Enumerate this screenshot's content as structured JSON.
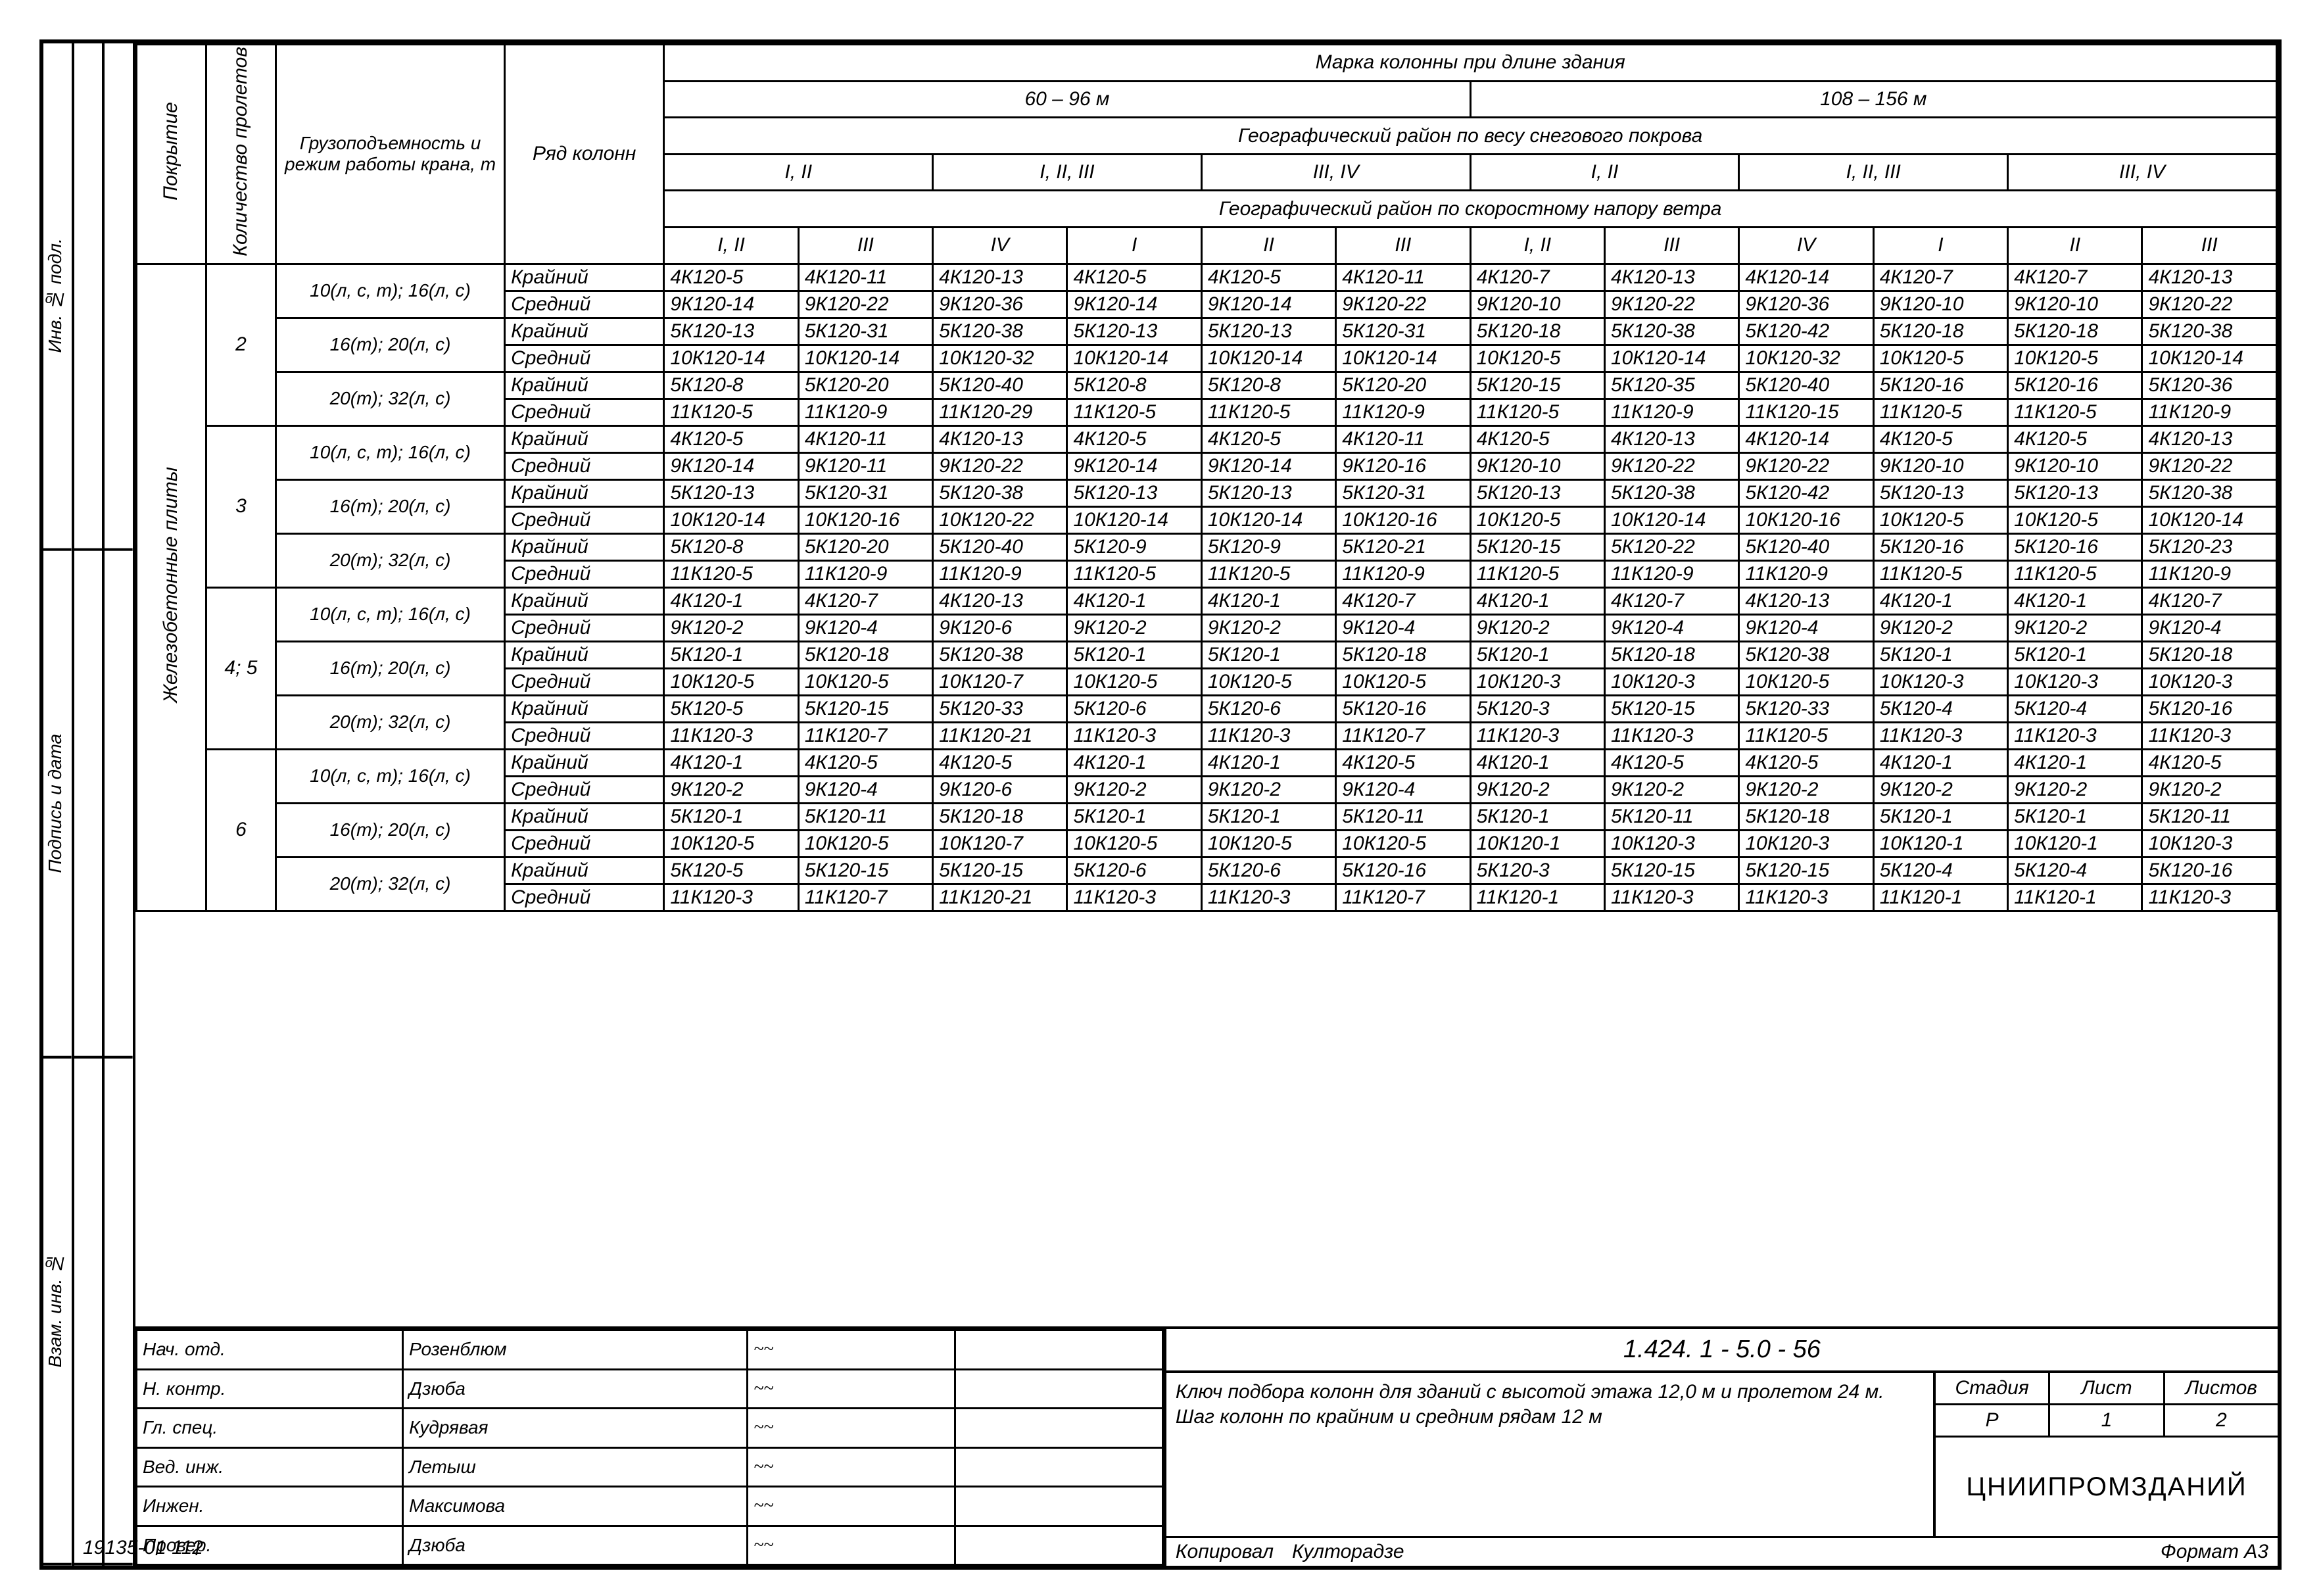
{
  "left_strip": {
    "col1": [
      "Инв. № подл.",
      "Подпись и дата",
      "Взам. инв. №"
    ],
    "col2": [
      "",
      "",
      ""
    ],
    "col3": [
      "",
      "",
      ""
    ]
  },
  "header": {
    "v1": "Покрытие",
    "v2": "Количество пролетов",
    "cap": "Грузоподъемность и режим работы крана, т",
    "row": "Ряд колонн",
    "top": "Марка   колонны   при   длине   здания",
    "span1": "60 – 96 м",
    "span2": "108 – 156 м",
    "geo_snow": "Географический   район   по   весу   снегового   покрова",
    "snow_groups": [
      "I, II",
      "I, II, III",
      "III, IV",
      "I, II",
      "I, II, III",
      "III, IV"
    ],
    "geo_wind": "Географический   район   по   скоростному   напору   ветра",
    "wind_groups": [
      "I, II",
      "III",
      "IV",
      "I",
      "II",
      "III",
      "I, II",
      "III",
      "IV",
      "I",
      "II",
      "III"
    ]
  },
  "side": {
    "covering": "Железобетонные   плиты"
  },
  "groups": [
    {
      "prolet": "2",
      "caps": [
        {
          "cap": "10(л, с, т); 16(л, с)",
          "rows": [
            {
              "row": "Крайний",
              "d": [
                "4К120-5",
                "4К120-11",
                "4К120-13",
                "4К120-5",
                "4К120-5",
                "4К120-11",
                "4К120-7",
                "4К120-13",
                "4К120-14",
                "4К120-7",
                "4К120-7",
                "4К120-13"
              ]
            },
            {
              "row": "Средний",
              "d": [
                "9К120-14",
                "9К120-22",
                "9К120-36",
                "9К120-14",
                "9К120-14",
                "9К120-22",
                "9К120-10",
                "9К120-22",
                "9К120-36",
                "9К120-10",
                "9К120-10",
                "9К120-22"
              ]
            }
          ]
        },
        {
          "cap": "16(т); 20(л, с)",
          "rows": [
            {
              "row": "Крайний",
              "d": [
                "5К120-13",
                "5К120-31",
                "5К120-38",
                "5К120-13",
                "5К120-13",
                "5К120-31",
                "5К120-18",
                "5К120-38",
                "5К120-42",
                "5К120-18",
                "5К120-18",
                "5К120-38"
              ]
            },
            {
              "row": "Средний",
              "d": [
                "10К120-14",
                "10К120-14",
                "10К120-32",
                "10К120-14",
                "10К120-14",
                "10К120-14",
                "10К120-5",
                "10К120-14",
                "10К120-32",
                "10К120-5",
                "10К120-5",
                "10К120-14"
              ]
            }
          ]
        },
        {
          "cap": "20(т); 32(л, с)",
          "rows": [
            {
              "row": "Крайний",
              "d": [
                "5К120-8",
                "5К120-20",
                "5К120-40",
                "5К120-8",
                "5К120-8",
                "5К120-20",
                "5К120-15",
                "5К120-35",
                "5К120-40",
                "5К120-16",
                "5К120-16",
                "5К120-36"
              ]
            },
            {
              "row": "Средний",
              "d": [
                "11К120-5",
                "11К120-9",
                "11К120-29",
                "11К120-5",
                "11К120-5",
                "11К120-9",
                "11К120-5",
                "11К120-9",
                "11К120-15",
                "11К120-5",
                "11К120-5",
                "11К120-9"
              ]
            }
          ]
        }
      ]
    },
    {
      "prolet": "3",
      "caps": [
        {
          "cap": "10(л, с, т); 16(л, с)",
          "rows": [
            {
              "row": "Крайний",
              "d": [
                "4К120-5",
                "4К120-11",
                "4К120-13",
                "4К120-5",
                "4К120-5",
                "4К120-11",
                "4К120-5",
                "4К120-13",
                "4К120-14",
                "4К120-5",
                "4К120-5",
                "4К120-13"
              ]
            },
            {
              "row": "Средний",
              "d": [
                "9К120-14",
                "9К120-11",
                "9К120-22",
                "9К120-14",
                "9К120-14",
                "9К120-16",
                "9К120-10",
                "9К120-22",
                "9К120-22",
                "9К120-10",
                "9К120-10",
                "9К120-22"
              ]
            }
          ]
        },
        {
          "cap": "16(т); 20(л, с)",
          "rows": [
            {
              "row": "Крайний",
              "d": [
                "5К120-13",
                "5К120-31",
                "5К120-38",
                "5К120-13",
                "5К120-13",
                "5К120-31",
                "5К120-13",
                "5К120-38",
                "5К120-42",
                "5К120-13",
                "5К120-13",
                "5К120-38"
              ]
            },
            {
              "row": "Средний",
              "d": [
                "10К120-14",
                "10К120-16",
                "10К120-22",
                "10К120-14",
                "10К120-14",
                "10К120-16",
                "10К120-5",
                "10К120-14",
                "10К120-16",
                "10К120-5",
                "10К120-5",
                "10К120-14"
              ]
            }
          ]
        },
        {
          "cap": "20(т); 32(л, с)",
          "rows": [
            {
              "row": "Крайний",
              "d": [
                "5К120-8",
                "5К120-20",
                "5К120-40",
                "5К120-9",
                "5К120-9",
                "5К120-21",
                "5К120-15",
                "5К120-22",
                "5К120-40",
                "5К120-16",
                "5К120-16",
                "5К120-23"
              ]
            },
            {
              "row": "Средний",
              "d": [
                "11К120-5",
                "11К120-9",
                "11К120-9",
                "11К120-5",
                "11К120-5",
                "11К120-9",
                "11К120-5",
                "11К120-9",
                "11К120-9",
                "11К120-5",
                "11К120-5",
                "11К120-9"
              ]
            }
          ]
        }
      ]
    },
    {
      "prolet": "4; 5",
      "caps": [
        {
          "cap": "10(л, с, т); 16(л, с)",
          "rows": [
            {
              "row": "Крайний",
              "d": [
                "4К120-1",
                "4К120-7",
                "4К120-13",
                "4К120-1",
                "4К120-1",
                "4К120-7",
                "4К120-1",
                "4К120-7",
                "4К120-13",
                "4К120-1",
                "4К120-1",
                "4К120-7"
              ]
            },
            {
              "row": "Средний",
              "d": [
                "9К120-2",
                "9К120-4",
                "9К120-6",
                "9К120-2",
                "9К120-2",
                "9К120-4",
                "9К120-2",
                "9К120-4",
                "9К120-4",
                "9К120-2",
                "9К120-2",
                "9К120-4"
              ]
            }
          ]
        },
        {
          "cap": "16(т); 20(л, с)",
          "rows": [
            {
              "row": "Крайний",
              "d": [
                "5К120-1",
                "5К120-18",
                "5К120-38",
                "5К120-1",
                "5К120-1",
                "5К120-18",
                "5К120-1",
                "5К120-18",
                "5К120-38",
                "5К120-1",
                "5К120-1",
                "5К120-18"
              ]
            },
            {
              "row": "Средний",
              "d": [
                "10К120-5",
                "10К120-5",
                "10К120-7",
                "10К120-5",
                "10К120-5",
                "10К120-5",
                "10К120-3",
                "10К120-3",
                "10К120-5",
                "10К120-3",
                "10К120-3",
                "10К120-3"
              ]
            }
          ]
        },
        {
          "cap": "20(т); 32(л, с)",
          "rows": [
            {
              "row": "Крайний",
              "d": [
                "5К120-5",
                "5К120-15",
                "5К120-33",
                "5К120-6",
                "5К120-6",
                "5К120-16",
                "5К120-3",
                "5К120-15",
                "5К120-33",
                "5К120-4",
                "5К120-4",
                "5К120-16"
              ]
            },
            {
              "row": "Средний",
              "d": [
                "11К120-3",
                "11К120-7",
                "11К120-21",
                "11К120-3",
                "11К120-3",
                "11К120-7",
                "11К120-3",
                "11К120-3",
                "11К120-5",
                "11К120-3",
                "11К120-3",
                "11К120-3"
              ]
            }
          ]
        }
      ]
    },
    {
      "prolet": "6",
      "caps": [
        {
          "cap": "10(л, с, т); 16(л, с)",
          "rows": [
            {
              "row": "Крайний",
              "d": [
                "4К120-1",
                "4К120-5",
                "4К120-5",
                "4К120-1",
                "4К120-1",
                "4К120-5",
                "4К120-1",
                "4К120-5",
                "4К120-5",
                "4К120-1",
                "4К120-1",
                "4К120-5"
              ]
            },
            {
              "row": "Средний",
              "d": [
                "9К120-2",
                "9К120-4",
                "9К120-6",
                "9К120-2",
                "9К120-2",
                "9К120-4",
                "9К120-2",
                "9К120-2",
                "9К120-2",
                "9К120-2",
                "9К120-2",
                "9К120-2"
              ]
            }
          ]
        },
        {
          "cap": "16(т); 20(л, с)",
          "rows": [
            {
              "row": "Крайний",
              "d": [
                "5К120-1",
                "5К120-11",
                "5К120-18",
                "5К120-1",
                "5К120-1",
                "5К120-11",
                "5К120-1",
                "5К120-11",
                "5К120-18",
                "5К120-1",
                "5К120-1",
                "5К120-11"
              ]
            },
            {
              "row": "Средний",
              "d": [
                "10К120-5",
                "10К120-5",
                "10К120-7",
                "10К120-5",
                "10К120-5",
                "10К120-5",
                "10К120-1",
                "10К120-3",
                "10К120-3",
                "10К120-1",
                "10К120-1",
                "10К120-3"
              ]
            }
          ]
        },
        {
          "cap": "20(т); 32(л, с)",
          "rows": [
            {
              "row": "Крайний",
              "d": [
                "5К120-5",
                "5К120-15",
                "5К120-15",
                "5К120-6",
                "5К120-6",
                "5К120-16",
                "5К120-3",
                "5К120-15",
                "5К120-15",
                "5К120-4",
                "5К120-4",
                "5К120-16"
              ]
            },
            {
              "row": "Средний",
              "d": [
                "11К120-3",
                "11К120-7",
                "11К120-21",
                "11К120-3",
                "11К120-3",
                "11К120-7",
                "11К120-1",
                "11К120-3",
                "11К120-3",
                "11К120-1",
                "11К120-1",
                "11К120-3"
              ]
            }
          ]
        }
      ]
    }
  ],
  "footer": {
    "code": "1.424. 1 - 5.0 - 56",
    "sigs": [
      [
        "Нач. отд.",
        "Розенблюм"
      ],
      [
        "Н. контр.",
        "Дзюба"
      ],
      [
        "Гл. спец.",
        "Кудрявая"
      ],
      [
        "Вед. инж.",
        "Летыш"
      ],
      [
        "Инжен.",
        "Максимова"
      ],
      [
        "Провер.",
        "Дзюба"
      ]
    ],
    "desc": "Ключ  подбора  колонн  для зданий  с  высотой  этажа 12,0 м  и  пролетом   24 м. Шаг  колонн  по  крайним и  средним  рядам  12 м",
    "stage_h": [
      "Стадия",
      "Лист",
      "Листов"
    ],
    "stage_v": [
      "Р",
      "1",
      "2"
    ],
    "org": "ЦНИИПРОМЗДАНИЙ",
    "copied": "Копировал",
    "copier": "Култорадзе",
    "format": "Формат  А3",
    "arch": "19135-01 112"
  }
}
